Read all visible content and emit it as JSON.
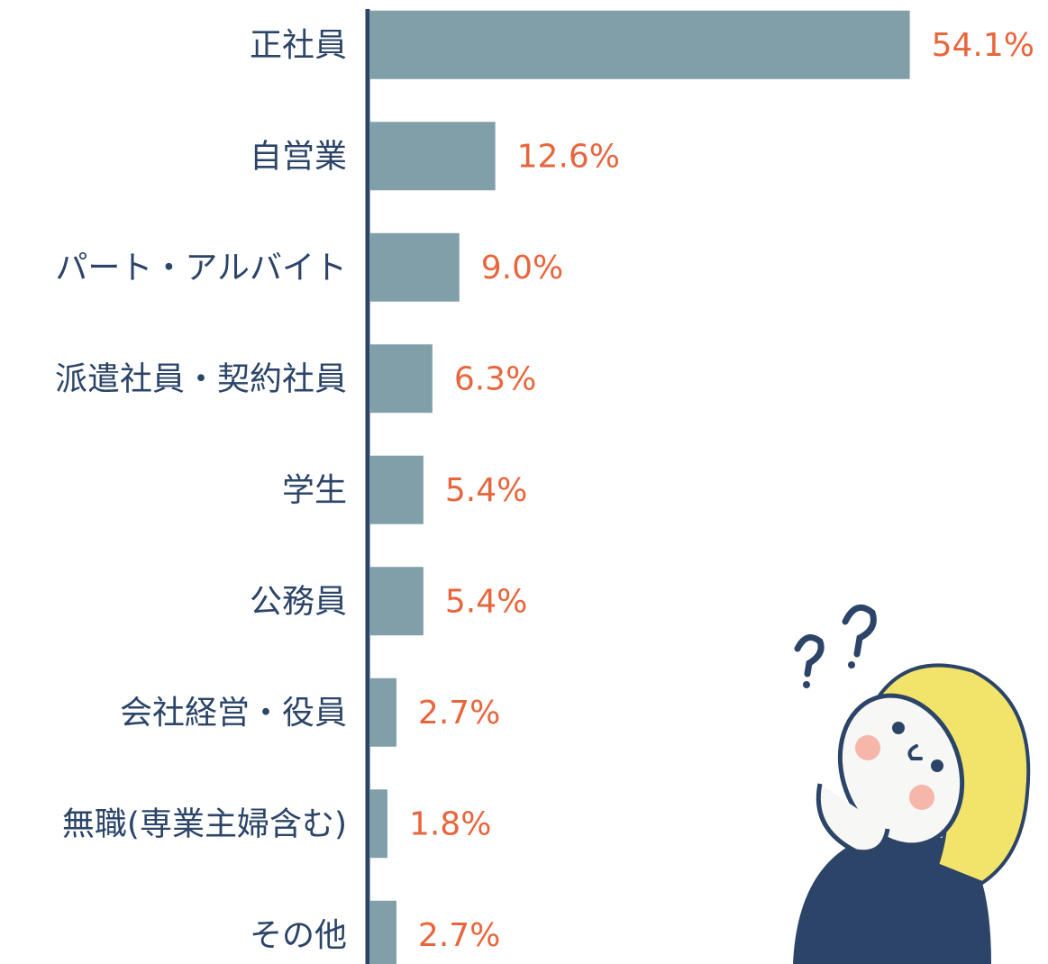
{
  "chart_data": {
    "type": "bar",
    "orientation": "horizontal",
    "categories": [
      "正社員",
      "自営業",
      "パート・アルバイト",
      "派遣社員・契約社員",
      "学生",
      "公務員",
      "会社経営・役員",
      "無職(専業主婦含む)",
      "その他"
    ],
    "values": [
      54.1,
      12.6,
      9.0,
      6.3,
      5.4,
      5.4,
      2.7,
      1.8,
      2.7
    ],
    "value_labels": [
      "54.1%",
      "12.6%",
      "9.0%",
      "6.3%",
      "5.4%",
      "5.4%",
      "2.7%",
      "1.8%",
      "2.7%"
    ],
    "color": "#809fa8",
    "label_color": "#e8663d",
    "xlim": [
      0,
      60
    ]
  }
}
